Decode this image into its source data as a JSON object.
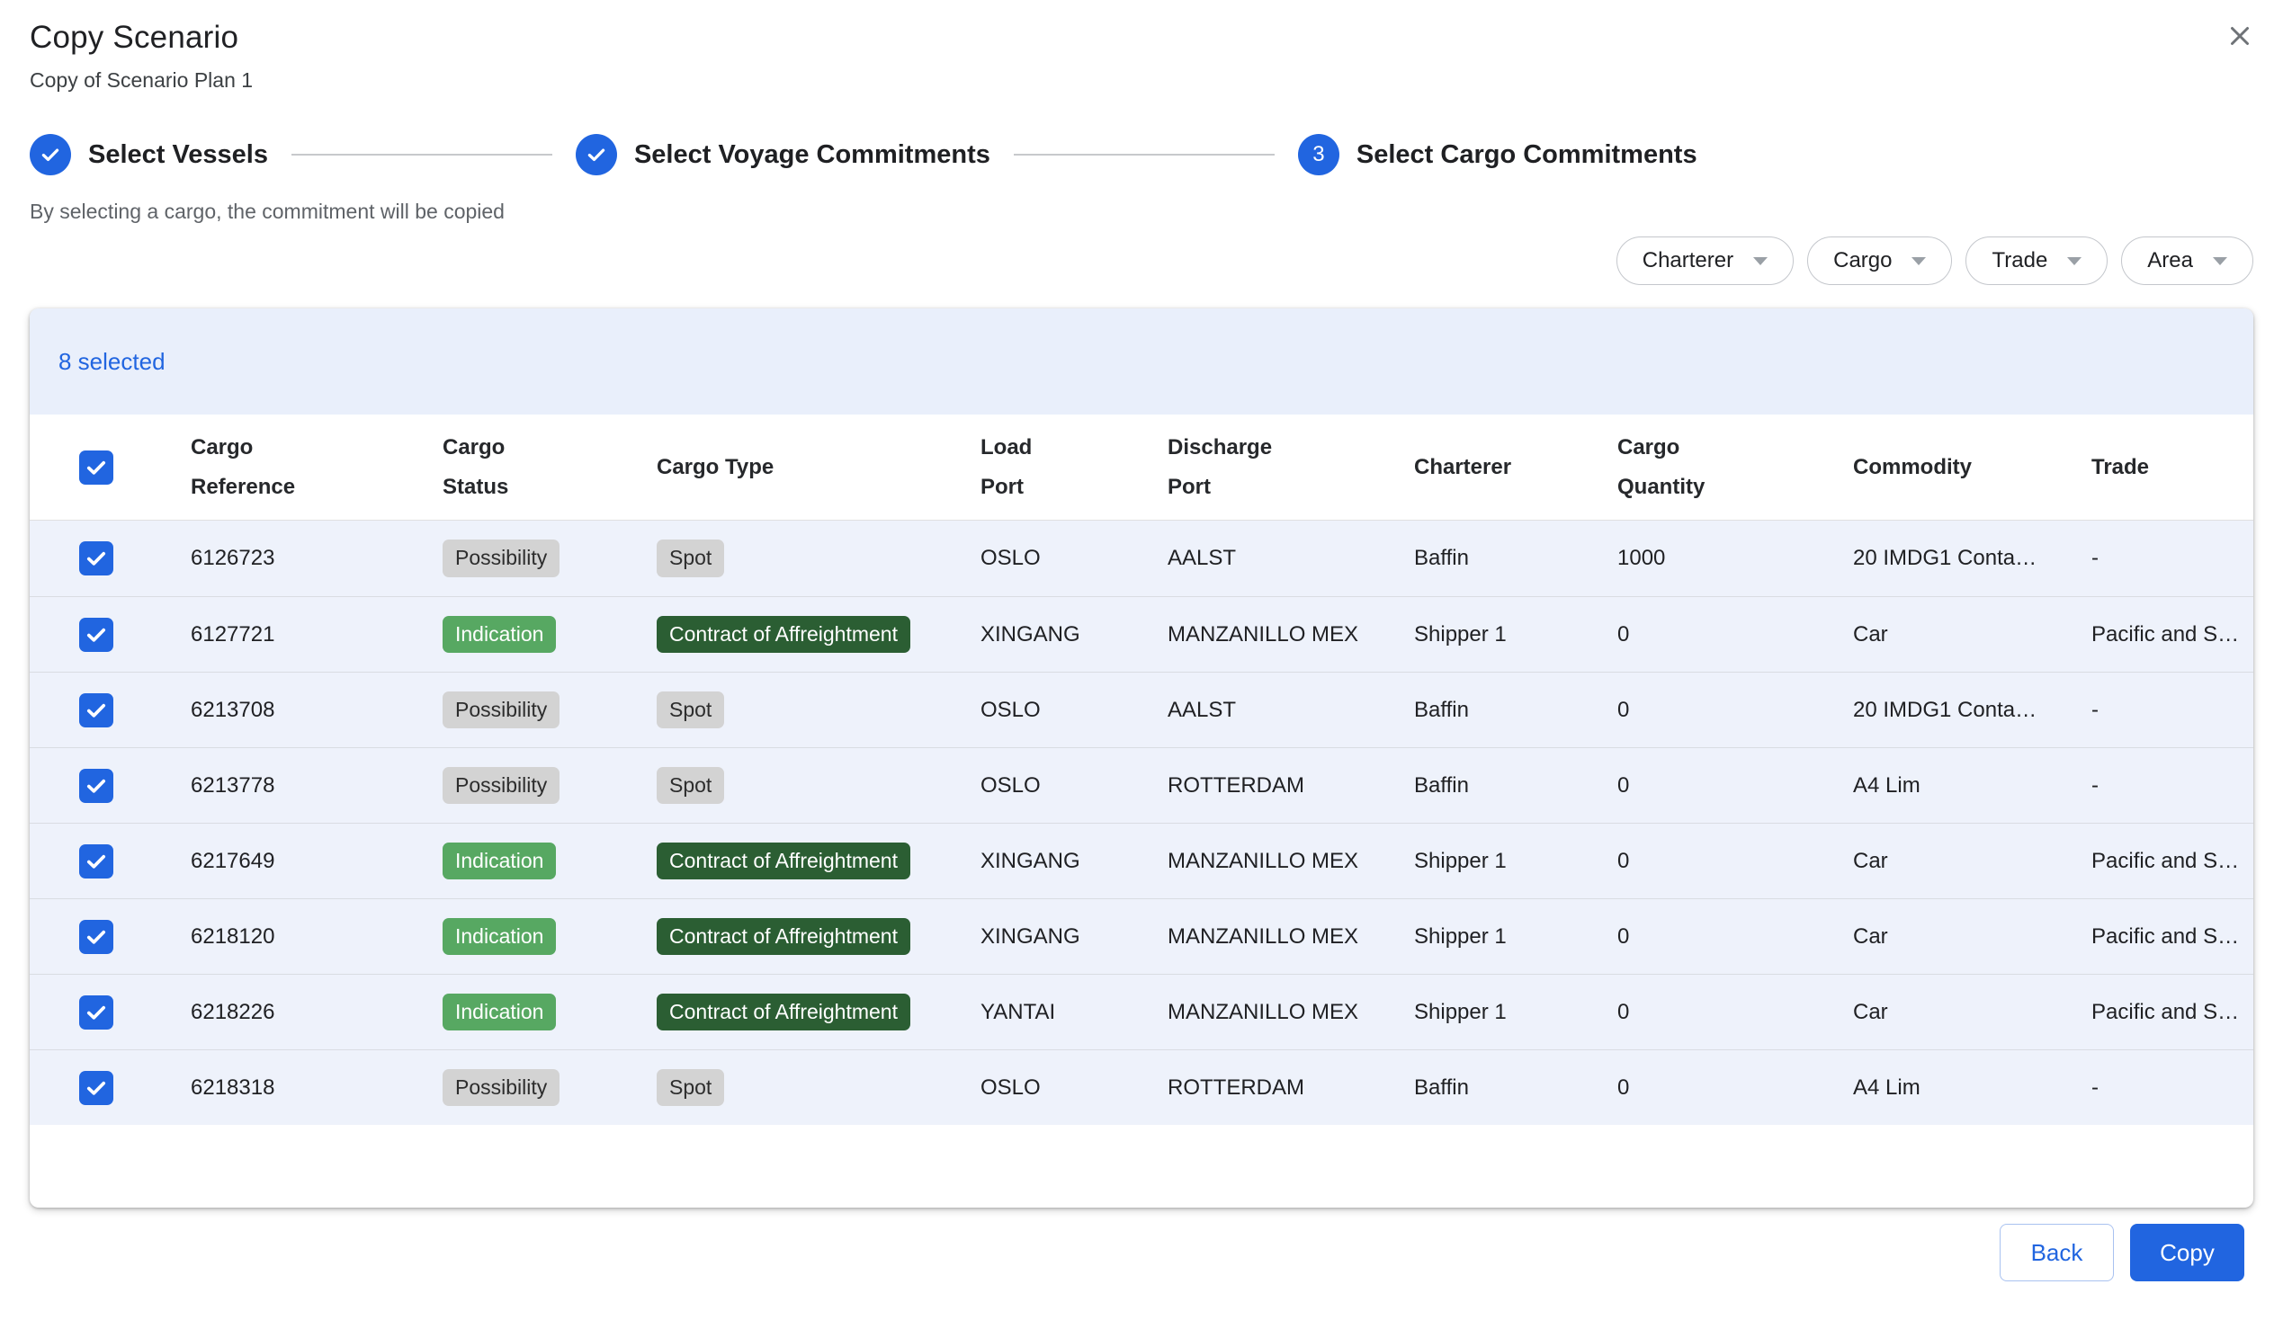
{
  "dialog": {
    "title": "Copy Scenario",
    "subtitle": "Copy of Scenario Plan 1",
    "caption": "By selecting a cargo, the commitment will be copied"
  },
  "stepper": {
    "steps": [
      {
        "label": "Select Vessels",
        "state": "complete"
      },
      {
        "label": "Select Voyage Commitments",
        "state": "complete"
      },
      {
        "label": "Select Cargo Commitments",
        "state": "active",
        "number": "3"
      }
    ]
  },
  "filters": [
    {
      "label": "Charterer"
    },
    {
      "label": "Cargo"
    },
    {
      "label": "Trade"
    },
    {
      "label": "Area"
    }
  ],
  "table": {
    "selected_count_label": "8 selected",
    "columns": [
      {
        "lines": [
          "Cargo",
          "Reference"
        ]
      },
      {
        "lines": [
          "Cargo",
          "Status"
        ]
      },
      {
        "lines": [
          "Cargo Type"
        ]
      },
      {
        "lines": [
          "Load",
          "Port"
        ]
      },
      {
        "lines": [
          "Discharge",
          "Port"
        ]
      },
      {
        "lines": [
          "Charterer"
        ]
      },
      {
        "lines": [
          "Cargo",
          "Quantity"
        ]
      },
      {
        "lines": [
          "Commodity"
        ]
      },
      {
        "lines": [
          "Trade"
        ]
      }
    ],
    "select_all_checked": true,
    "rows": [
      {
        "checked": true,
        "reference": "6126723",
        "status": {
          "label": "Possibility",
          "variant": "neutral"
        },
        "type": {
          "label": "Spot",
          "variant": "neutral"
        },
        "load_port": "OSLO",
        "discharge_port": "AALST",
        "charterer": "Baffin",
        "cargo_quantity": "1000",
        "commodity": "20 IMDG1 Conta…",
        "trade": "-"
      },
      {
        "checked": true,
        "reference": "6127721",
        "status": {
          "label": "Indication",
          "variant": "green"
        },
        "type": {
          "label": "Contract of Affreightment",
          "variant": "dark-green"
        },
        "load_port": "XINGANG",
        "discharge_port": "MANZANILLO MEX",
        "charterer": "Shipper 1",
        "cargo_quantity": "0",
        "commodity": "Car",
        "trade": "Pacific and So…"
      },
      {
        "checked": true,
        "reference": "6213708",
        "status": {
          "label": "Possibility",
          "variant": "neutral"
        },
        "type": {
          "label": "Spot",
          "variant": "neutral"
        },
        "load_port": "OSLO",
        "discharge_port": "AALST",
        "charterer": "Baffin",
        "cargo_quantity": "0",
        "commodity": "20 IMDG1 Conta…",
        "trade": "-"
      },
      {
        "checked": true,
        "reference": "6213778",
        "status": {
          "label": "Possibility",
          "variant": "neutral"
        },
        "type": {
          "label": "Spot",
          "variant": "neutral"
        },
        "load_port": "OSLO",
        "discharge_port": "ROTTERDAM",
        "charterer": "Baffin",
        "cargo_quantity": "0",
        "commodity": "A4 Lim",
        "trade": "-"
      },
      {
        "checked": true,
        "reference": "6217649",
        "status": {
          "label": "Indication",
          "variant": "green"
        },
        "type": {
          "label": "Contract of Affreightment",
          "variant": "dark-green"
        },
        "load_port": "XINGANG",
        "discharge_port": "MANZANILLO MEX",
        "charterer": "Shipper 1",
        "cargo_quantity": "0",
        "commodity": "Car",
        "trade": "Pacific and So…"
      },
      {
        "checked": true,
        "reference": "6218120",
        "status": {
          "label": "Indication",
          "variant": "green"
        },
        "type": {
          "label": "Contract of Affreightment",
          "variant": "dark-green"
        },
        "load_port": "XINGANG",
        "discharge_port": "MANZANILLO MEX",
        "charterer": "Shipper 1",
        "cargo_quantity": "0",
        "commodity": "Car",
        "trade": "Pacific and So…"
      },
      {
        "checked": true,
        "reference": "6218226",
        "status": {
          "label": "Indication",
          "variant": "green"
        },
        "type": {
          "label": "Contract of Affreightment",
          "variant": "dark-green"
        },
        "load_port": "YANTAI",
        "discharge_port": "MANZANILLO MEX",
        "charterer": "Shipper 1",
        "cargo_quantity": "0",
        "commodity": "Car",
        "trade": "Pacific and So…"
      },
      {
        "checked": true,
        "reference": "6218318",
        "status": {
          "label": "Possibility",
          "variant": "neutral"
        },
        "type": {
          "label": "Spot",
          "variant": "neutral"
        },
        "load_port": "OSLO",
        "discharge_port": "ROTTERDAM",
        "charterer": "Baffin",
        "cargo_quantity": "0",
        "commodity": "A4 Lim",
        "trade": "-"
      }
    ]
  },
  "footer": {
    "back_label": "Back",
    "copy_label": "Copy"
  },
  "icons": {
    "close": "close-icon",
    "step_check": "check-icon",
    "pill_caret": "chevron-down-icon"
  },
  "colors": {
    "accent_blue": "#2165e0",
    "selected_band_bg": "#e9effb",
    "row_bg": "#eef2fb",
    "badge_neutral_bg": "#d3d3d3",
    "badge_green_bg": "#57a862",
    "badge_dark_green_bg": "#2b5e33"
  }
}
